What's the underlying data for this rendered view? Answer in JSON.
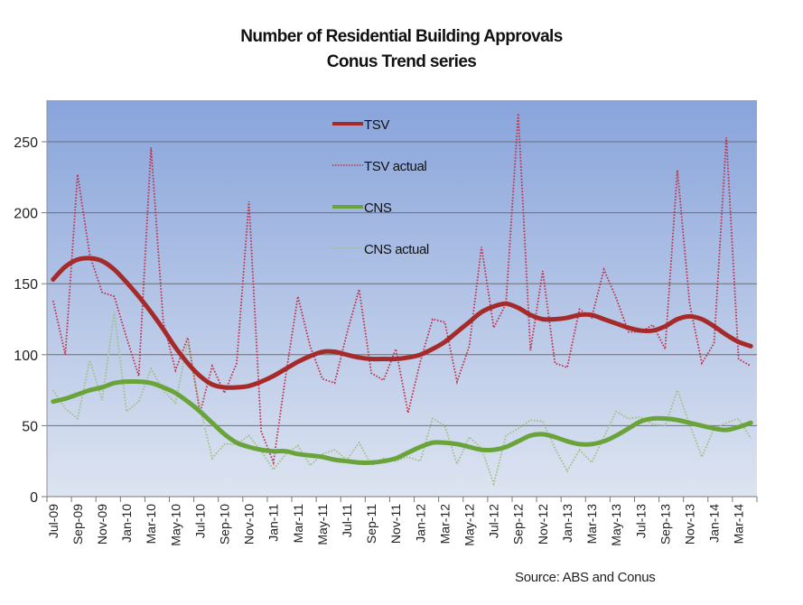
{
  "chart_data": {
    "type": "line",
    "title": "Number of Residential Building Approvals",
    "subtitle": "Conus Trend series",
    "source": "Source: ABS and Conus",
    "xlabel": "",
    "ylabel": "",
    "ylim": [
      0,
      280
    ],
    "yticks": [
      0,
      50,
      100,
      150,
      200,
      250
    ],
    "grid": true,
    "legend_position": "top-center",
    "x": [
      "Jul-09",
      "Aug-09",
      "Sep-09",
      "Oct-09",
      "Nov-09",
      "Dec-09",
      "Jan-10",
      "Feb-10",
      "Mar-10",
      "Apr-10",
      "May-10",
      "Jun-10",
      "Jul-10",
      "Aug-10",
      "Sep-10",
      "Oct-10",
      "Nov-10",
      "Dec-10",
      "Jan-11",
      "Feb-11",
      "Mar-11",
      "Apr-11",
      "May-11",
      "Jun-11",
      "Jul-11",
      "Aug-11",
      "Sep-11",
      "Oct-11",
      "Nov-11",
      "Dec-11",
      "Jan-12",
      "Feb-12",
      "Mar-12",
      "Apr-12",
      "May-12",
      "Jun-12",
      "Jul-12",
      "Aug-12",
      "Sep-12",
      "Oct-12",
      "Nov-12",
      "Dec-12",
      "Jan-13",
      "Feb-13",
      "Mar-13",
      "Apr-13",
      "May-13",
      "Jun-13",
      "Jul-13",
      "Aug-13",
      "Sep-13",
      "Oct-13",
      "Nov-13",
      "Dec-13",
      "Jan-14",
      "Feb-14",
      "Mar-14",
      "Apr-14"
    ],
    "xtick_labels": [
      "Jul-09",
      "Sep-09",
      "Nov-09",
      "Jan-10",
      "Mar-10",
      "May-10",
      "Jul-10",
      "Sep-10",
      "Nov-10",
      "Jan-11",
      "Mar-11",
      "May-11",
      "Jul-11",
      "Sep-11",
      "Nov-11",
      "Jan-12",
      "Mar-12",
      "May-12",
      "Jul-12",
      "Sep-12",
      "Nov-12",
      "Jan-13",
      "Mar-13",
      "May-13",
      "Jul-13",
      "Sep-13",
      "Nov-13",
      "Jan-14",
      "Mar-14"
    ],
    "series": [
      {
        "name": "TSV",
        "style": "solid-thick",
        "color": "#a52a2a",
        "values": [
          153,
          162,
          167,
          168,
          166,
          160,
          151,
          141,
          130,
          118,
          105,
          94,
          85,
          79,
          77,
          77,
          78,
          81,
          85,
          90,
          95,
          99,
          102,
          102,
          100,
          98,
          97,
          97,
          97,
          98,
          100,
          104,
          109,
          116,
          123,
          130,
          134,
          136,
          133,
          128,
          125,
          125,
          126,
          128,
          128,
          125,
          122,
          119,
          117,
          117,
          120,
          125,
          127,
          125,
          120,
          114,
          109,
          106
        ]
      },
      {
        "name": "TSV actual",
        "style": "dotted",
        "color": "#c0304a",
        "values": [
          138,
          100,
          227,
          170,
          144,
          141,
          112,
          85,
          246,
          123,
          89,
          112,
          59,
          92,
          73,
          94,
          208,
          46,
          24,
          85,
          141,
          106,
          83,
          80,
          115,
          146,
          87,
          82,
          104,
          59,
          95,
          125,
          123,
          81,
          106,
          176,
          119,
          136,
          270,
          103,
          159,
          94,
          91,
          132,
          126,
          160,
          140,
          116,
          116,
          121,
          104,
          230,
          136,
          94,
          108,
          253,
          97,
          92
        ]
      },
      {
        "name": "CNS",
        "style": "solid-thick",
        "color": "#6aa339",
        "values": [
          67,
          69,
          72,
          75,
          77,
          80,
          81,
          81,
          80,
          77,
          73,
          67,
          60,
          52,
          44,
          38,
          35,
          33,
          32,
          32,
          30,
          29,
          28,
          26,
          25,
          24,
          24,
          25,
          27,
          31,
          35,
          38,
          38,
          37,
          35,
          33,
          33,
          35,
          39,
          43,
          44,
          42,
          39,
          37,
          37,
          39,
          43,
          48,
          53,
          55,
          55,
          54,
          52,
          50,
          48,
          47,
          49,
          52
        ]
      },
      {
        "name": "CNS actual",
        "style": "dotted",
        "color": "#a0c080",
        "values": [
          75,
          62,
          55,
          96,
          68,
          130,
          60,
          67,
          90,
          75,
          66,
          109,
          63,
          27,
          37,
          37,
          43,
          32,
          19,
          30,
          36,
          22,
          30,
          33,
          26,
          38,
          22,
          27,
          25,
          28,
          25,
          55,
          50,
          23,
          42,
          34,
          9,
          43,
          48,
          54,
          53,
          34,
          18,
          33,
          24,
          42,
          60,
          55,
          56,
          51,
          50,
          75,
          51,
          28,
          48,
          52,
          55,
          41
        ]
      }
    ]
  }
}
